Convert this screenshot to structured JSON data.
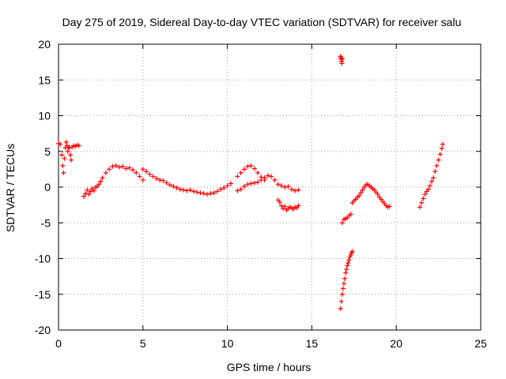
{
  "chart_data": {
    "type": "scatter",
    "title": "Day 275 of 2019, Sidereal Day-to-day VTEC variation (SDTVAR) for receiver salu",
    "xlabel": "GPS time / hours",
    "ylabel": "SDTVAR / TECUs",
    "xlim": [
      0,
      25
    ],
    "ylim": [
      -20,
      20
    ],
    "xticks": [
      0,
      5,
      10,
      15,
      20,
      25
    ],
    "yticks": [
      -20,
      -15,
      -10,
      -5,
      0,
      5,
      10,
      15,
      20
    ],
    "grid": true,
    "marker": "+",
    "color": "#ff0000",
    "series": [
      {
        "name": "SDTVAR",
        "segments": [
          {
            "x": [
              0.0,
              0.1,
              0.2,
              0.25,
              0.3,
              0.35,
              0.4,
              0.45,
              0.5,
              0.55,
              0.6,
              0.65,
              0.7,
              0.75,
              0.8,
              0.9,
              1.0,
              1.1,
              1.2
            ],
            "y": [
              6.1,
              6.0,
              4.5,
              3.0,
              2.0,
              4.0,
              5.5,
              6.3,
              5.8,
              5.0,
              5.5,
              5.6,
              4.5,
              3.8,
              5.6,
              5.8,
              5.7,
              5.9,
              5.8
            ]
          },
          {
            "x": [
              1.5,
              1.6,
              1.7,
              1.8,
              1.9,
              2.0,
              2.1,
              2.2,
              2.3,
              2.4,
              2.5,
              2.6,
              2.8,
              3.0,
              3.2,
              3.4,
              3.6,
              3.8,
              4.0,
              4.2,
              4.4,
              4.6,
              4.8,
              5.0
            ],
            "y": [
              -1.3,
              -0.9,
              -0.4,
              -1.0,
              -0.6,
              -0.2,
              -0.5,
              0.0,
              0.1,
              0.4,
              0.8,
              1.3,
              2.0,
              2.5,
              2.9,
              3.0,
              2.8,
              2.9,
              2.6,
              2.7,
              2.4,
              2.0,
              1.5,
              1.0
            ]
          },
          {
            "x": [
              5.0,
              5.2,
              5.4,
              5.6,
              5.8,
              6.0,
              6.2,
              6.4,
              6.6,
              6.8,
              7.0,
              7.2,
              7.4,
              7.6,
              7.8,
              8.0,
              8.2,
              8.4,
              8.6,
              8.8,
              9.0,
              9.2,
              9.4,
              9.6,
              9.8,
              10.0,
              10.2
            ],
            "y": [
              2.5,
              2.2,
              1.8,
              1.5,
              1.2,
              1.0,
              0.9,
              0.6,
              0.3,
              0.1,
              -0.1,
              -0.3,
              -0.4,
              -0.5,
              -0.4,
              -0.6,
              -0.7,
              -0.8,
              -0.9,
              -1.0,
              -0.9,
              -0.8,
              -0.6,
              -0.3,
              -0.1,
              0.2,
              0.5
            ]
          },
          {
            "x": [
              10.6,
              10.8,
              11.0,
              11.2,
              11.4,
              11.6,
              11.8,
              12.0,
              12.2
            ],
            "y": [
              1.5,
              2.0,
              2.5,
              2.9,
              3.0,
              2.6,
              2.0,
              1.4,
              1.0
            ]
          },
          {
            "x": [
              10.6,
              10.8,
              11.0,
              11.2,
              11.4,
              11.6,
              11.8,
              12.0,
              12.2,
              12.4,
              12.6,
              12.8,
              13.0,
              13.2,
              13.4,
              13.6,
              13.8,
              14.0,
              14.2
            ],
            "y": [
              -0.5,
              -0.3,
              0.1,
              0.4,
              0.5,
              0.6,
              0.7,
              1.0,
              1.3,
              1.6,
              1.5,
              1.0,
              0.4,
              0.2,
              0.0,
              0.1,
              -0.3,
              -0.5,
              -0.4
            ]
          },
          {
            "x": [
              13.0,
              13.1,
              13.2,
              13.3,
              13.4,
              13.5,
              13.6,
              13.7,
              13.8,
              13.9,
              14.0,
              14.1,
              14.2
            ],
            "y": [
              -1.8,
              -2.1,
              -2.6,
              -3.0,
              -2.7,
              -3.2,
              -3.0,
              -2.8,
              -2.9,
              -3.1,
              -2.8,
              -2.9,
              -2.6
            ]
          },
          {
            "x": [
              16.7,
              16.72,
              16.74,
              16.76,
              16.78,
              16.8
            ],
            "y": [
              18.3,
              18.1,
              17.9,
              17.6,
              17.3,
              18.0
            ]
          },
          {
            "x": [
              16.7,
              16.75,
              16.8,
              16.85,
              16.9,
              16.95,
              17.0,
              17.05,
              17.1,
              17.15,
              17.2,
              17.25,
              17.3,
              17.35,
              17.4
            ],
            "y": [
              -17.0,
              -16.0,
              -15.0,
              -14.2,
              -13.5,
              -12.8,
              -12.0,
              -11.5,
              -11.0,
              -10.6,
              -10.2,
              -9.8,
              -9.5,
              -9.2,
              -9.0
            ]
          },
          {
            "x": [
              16.8,
              16.9,
              17.0,
              17.1,
              17.2,
              17.3
            ],
            "y": [
              -5.0,
              -4.5,
              -4.4,
              -4.3,
              -4.0,
              -3.8
            ]
          },
          {
            "x": [
              17.4,
              17.5,
              17.6,
              17.7,
              17.8,
              17.9,
              18.0,
              18.1,
              18.2,
              18.3,
              18.4,
              18.5,
              18.6,
              18.7,
              18.8,
              18.9,
              19.0,
              19.1,
              19.2,
              19.3,
              19.4,
              19.5,
              19.6
            ],
            "y": [
              -2.2,
              -1.9,
              -1.7,
              -1.4,
              -1.2,
              -0.8,
              -0.4,
              0.0,
              0.3,
              0.4,
              0.2,
              0.0,
              -0.2,
              -0.4,
              -0.7,
              -1.0,
              -1.4,
              -1.7,
              -2.0,
              -2.3,
              -2.6,
              -2.8,
              -2.7
            ]
          },
          {
            "x": [
              21.4,
              21.5,
              21.6,
              21.7,
              21.8,
              21.9,
              22.0,
              22.1,
              22.2,
              22.3,
              22.4,
              22.5,
              22.6,
              22.7,
              22.75
            ],
            "y": [
              -2.8,
              -2.2,
              -1.6,
              -1.0,
              -0.6,
              -0.3,
              0.2,
              0.8,
              1.3,
              2.2,
              3.0,
              3.8,
              4.6,
              5.4,
              6.0
            ]
          }
        ]
      }
    ]
  }
}
